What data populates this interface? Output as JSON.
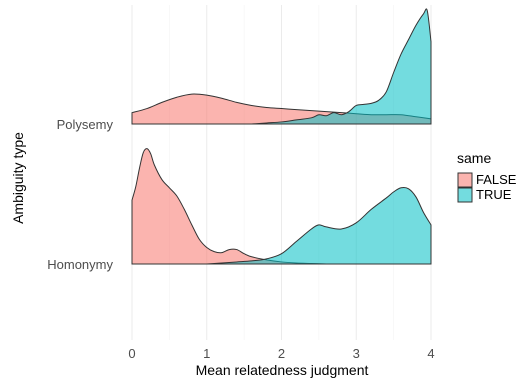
{
  "chart_data": {
    "type": "area",
    "subtype": "ridgeline-density",
    "xlabel": "Mean relatedness judgment",
    "ylabel": "Ambiguity type",
    "xlim": [
      0,
      4
    ],
    "x_ticks": [
      0,
      1,
      2,
      3,
      4
    ],
    "x_tick_labels": [
      "0",
      "1",
      "2",
      "3",
      "4"
    ],
    "categories": [
      "Polysemy",
      "Homonymy"
    ],
    "grid": true,
    "legend": {
      "title": "same",
      "position": "right",
      "entries": [
        {
          "label": "FALSE",
          "color": "#F8766D"
        },
        {
          "label": "TRUE",
          "color": "#00BFC4"
        }
      ]
    },
    "groups": [
      {
        "category": "Polysemy",
        "series": [
          {
            "name": "FALSE",
            "color": "#F8766D",
            "x": [
              0.0,
              0.2,
              0.4,
              0.6,
              0.8,
              1.0,
              1.2,
              1.4,
              1.6,
              1.8,
              2.0,
              2.2,
              2.4,
              2.6,
              2.8,
              3.0,
              3.2,
              3.4,
              3.6,
              3.8,
              4.0
            ],
            "density": [
              0.11,
              0.15,
              0.21,
              0.26,
              0.29,
              0.28,
              0.25,
              0.21,
              0.18,
              0.16,
              0.15,
              0.14,
              0.13,
              0.12,
              0.11,
              0.1,
              0.09,
              0.09,
              0.09,
              0.07,
              0.05
            ]
          },
          {
            "name": "TRUE",
            "color": "#00BFC4",
            "x": [
              1.6,
              1.8,
              2.0,
              2.2,
              2.4,
              2.5,
              2.6,
              2.7,
              2.8,
              2.9,
              3.0,
              3.1,
              3.2,
              3.3,
              3.4,
              3.5,
              3.6,
              3.7,
              3.8,
              3.9,
              3.95,
              4.0
            ],
            "density": [
              0.0,
              0.01,
              0.02,
              0.04,
              0.06,
              0.09,
              0.08,
              0.11,
              0.09,
              0.12,
              0.18,
              0.19,
              0.2,
              0.23,
              0.31,
              0.5,
              0.68,
              0.82,
              0.96,
              1.07,
              1.1,
              0.8
            ]
          }
        ]
      },
      {
        "category": "Homonymy",
        "series": [
          {
            "name": "FALSE",
            "color": "#F8766D",
            "x": [
              0.0,
              0.05,
              0.1,
              0.15,
              0.2,
              0.25,
              0.3,
              0.4,
              0.5,
              0.6,
              0.7,
              0.8,
              0.9,
              1.0,
              1.1,
              1.2,
              1.3,
              1.4,
              1.5,
              1.6,
              1.8,
              2.0,
              2.2,
              2.4,
              2.6
            ],
            "density": [
              0.62,
              0.75,
              0.93,
              1.08,
              1.12,
              1.07,
              0.96,
              0.82,
              0.74,
              0.66,
              0.53,
              0.38,
              0.24,
              0.16,
              0.12,
              0.11,
              0.14,
              0.14,
              0.1,
              0.07,
              0.04,
              0.02,
              0.01,
              0.005,
              0.0
            ]
          },
          {
            "name": "TRUE",
            "color": "#00BFC4",
            "x": [
              1.0,
              1.2,
              1.4,
              1.6,
              1.8,
              2.0,
              2.2,
              2.4,
              2.5,
              2.6,
              2.8,
              3.0,
              3.2,
              3.4,
              3.5,
              3.6,
              3.7,
              3.8,
              3.9,
              4.0
            ],
            "density": [
              0.0,
              0.01,
              0.02,
              0.03,
              0.05,
              0.1,
              0.22,
              0.34,
              0.38,
              0.36,
              0.34,
              0.4,
              0.53,
              0.64,
              0.7,
              0.74,
              0.73,
              0.65,
              0.5,
              0.38
            ]
          }
        ]
      }
    ]
  }
}
